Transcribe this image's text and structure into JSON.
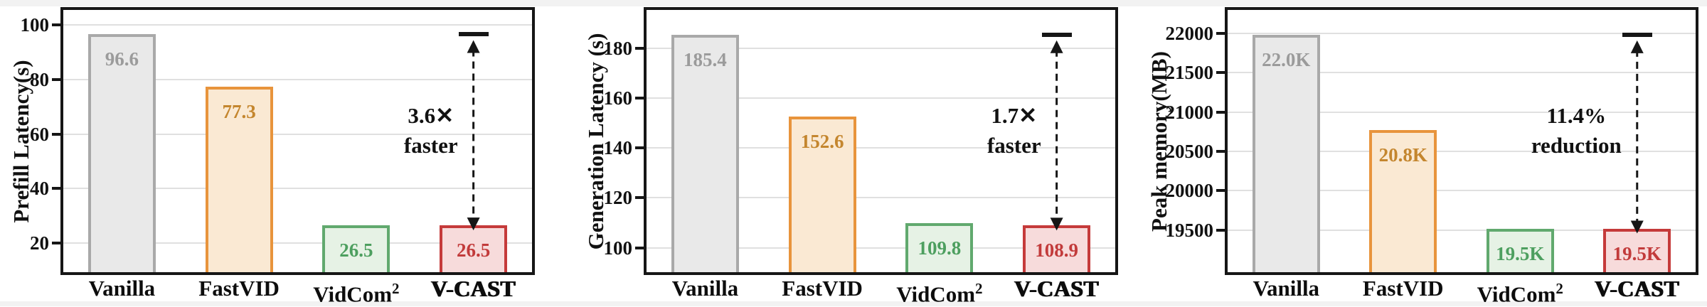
{
  "figure": {
    "background_color": "#ffffff",
    "margin_color": "#f2f2f2",
    "axis_color": "#161616",
    "grid_color": "#e0e0e0",
    "text_color": "#111111"
  },
  "palette": [
    {
      "name": "Vanilla",
      "fill": "#e9e9e9",
      "stroke": "#a9a9a9",
      "label_color": "#9b9b9b"
    },
    {
      "name": "FastVID",
      "fill": "#fae9d3",
      "stroke": "#e8943c",
      "label_color": "#c4862e"
    },
    {
      "name": "VidCom2",
      "fill": "#e6f2e5",
      "stroke": "#61a96e",
      "label_color": "#4d9f5f"
    },
    {
      "name": "V-CAST",
      "fill": "#f7dbdb",
      "stroke": "#c53a3a",
      "label_color": "#c23b3b"
    }
  ],
  "chart_data": [
    {
      "type": "bar",
      "title": "",
      "ylabel": "Prefill Latency(s)",
      "xlabel": "",
      "categories": [
        {
          "text": "Vanilla"
        },
        {
          "text": "FastVID"
        },
        {
          "text": "VidCom",
          "sup": "2"
        },
        {
          "text": "V-CAST",
          "emphasis": true
        }
      ],
      "values": [
        96.6,
        77.3,
        26.5,
        26.5
      ],
      "bar_labels": [
        "96.6",
        "77.3",
        "26.5",
        "26.5"
      ],
      "yticks": [
        20,
        40,
        60,
        80,
        100
      ],
      "ylim": [
        9.3,
        105.6
      ],
      "grid": true,
      "legend": "none",
      "annotation": {
        "lines": [
          "3.6✕",
          "faster"
        ],
        "from_value": 96.6,
        "to_value": 26.5,
        "at_category": "V-CAST"
      }
    },
    {
      "type": "bar",
      "title": "",
      "ylabel": "Generation Latency (s)",
      "xlabel": "",
      "categories": [
        {
          "text": "Vanilla"
        },
        {
          "text": "FastVID"
        },
        {
          "text": "VidCom",
          "sup": "2"
        },
        {
          "text": "V-CAST",
          "emphasis": true
        }
      ],
      "values": [
        185.4,
        152.6,
        109.8,
        108.9
      ],
      "bar_labels": [
        "185.4",
        "152.6",
        "109.8",
        "108.9"
      ],
      "yticks": [
        100,
        120,
        140,
        160,
        180
      ],
      "ylim": [
        90.2,
        195.3
      ],
      "grid": true,
      "legend": "none",
      "annotation": {
        "lines": [
          "1.7✕",
          "faster"
        ],
        "from_value": 185.4,
        "to_value": 108.9,
        "at_category": "V-CAST"
      }
    },
    {
      "type": "bar",
      "title": "",
      "ylabel": "Peak memory(MB)",
      "xlabel": "",
      "categories": [
        {
          "text": "Vanilla"
        },
        {
          "text": "FastVID"
        },
        {
          "text": "VidCom",
          "sup": "2"
        },
        {
          "text": "V-CAST",
          "emphasis": true
        }
      ],
      "values": [
        21980,
        20770,
        19520,
        19520
      ],
      "bar_labels": [
        "22.0K",
        "20.8K",
        "19.5K",
        "19.5K"
      ],
      "yticks": [
        19500,
        20000,
        20500,
        21000,
        21500,
        22000
      ],
      "ylim": [
        18965,
        22295
      ],
      "grid": true,
      "legend": "none",
      "annotation": {
        "lines": [
          "11.4%",
          "reduction"
        ],
        "from_value": 21980,
        "to_value": 19520,
        "at_category": "V-CAST"
      }
    }
  ]
}
